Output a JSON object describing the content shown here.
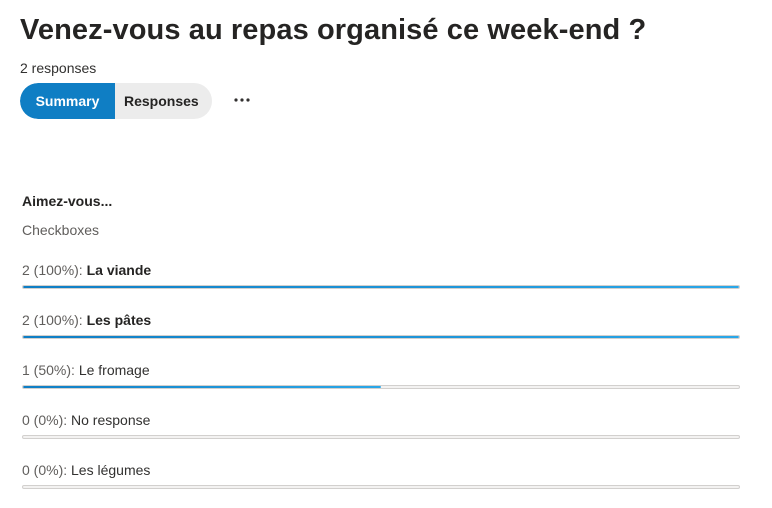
{
  "form": {
    "title": "Venez-vous au repas organisé ce week-end ?",
    "response_count": "2 responses"
  },
  "tabs": {
    "summary_label": "Summary",
    "responses_label": "Responses",
    "active": "Summary"
  },
  "toolbar": {
    "more_icon": "more-horizontal-icon"
  },
  "question": {
    "title": "Aimez-vous...",
    "type": "Checkboxes",
    "options": [
      {
        "count": "2",
        "percent": "100%",
        "label": "La viande",
        "fraction": 1.0,
        "bold": true
      },
      {
        "count": "2",
        "percent": "100%",
        "label": "Les pâtes",
        "fraction": 1.0,
        "bold": true
      },
      {
        "count": "1",
        "percent": "50%",
        "label": "Le fromage",
        "fraction": 0.5,
        "bold": false
      },
      {
        "count": "0",
        "percent": "0%",
        "label": "No response",
        "fraction": 0.0,
        "bold": false
      },
      {
        "count": "0",
        "percent": "0%",
        "label": "Les légumes",
        "fraction": 0.0,
        "bold": false
      }
    ]
  },
  "colors": {
    "accent": "#0f7ec4",
    "bar_end": "#2aa7e8",
    "track": "#f3f2f1"
  }
}
